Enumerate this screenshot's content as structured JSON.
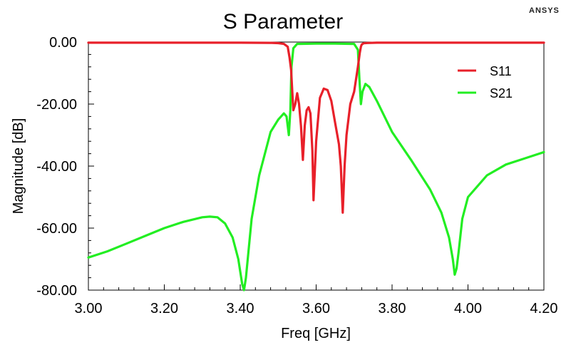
{
  "brand": "ANSYS",
  "chart_data": {
    "type": "line",
    "title": "S Parameter",
    "xlabel": "Freq [GHz]",
    "ylabel": "Magnitude [dB]",
    "xlim": [
      3.0,
      4.2
    ],
    "ylim": [
      -80,
      0
    ],
    "x_ticks": [
      "3.00",
      "3.20",
      "3.40",
      "3.60",
      "3.80",
      "4.00",
      "4.20"
    ],
    "y_ticks": [
      "0.00",
      "-20.00",
      "-40.00",
      "-60.00",
      "-80.00"
    ],
    "grid": false,
    "legend_position": "top-right",
    "series": [
      {
        "name": "S11",
        "color": "#e8202a",
        "x": [
          3.0,
          3.3,
          3.4,
          3.48,
          3.5,
          3.515,
          3.525,
          3.53,
          3.534,
          3.537,
          3.54,
          3.545,
          3.55,
          3.555,
          3.56,
          3.565,
          3.57,
          3.575,
          3.58,
          3.585,
          3.59,
          3.593,
          3.6,
          3.61,
          3.62,
          3.63,
          3.64,
          3.65,
          3.66,
          3.665,
          3.67,
          3.675,
          3.68,
          3.69,
          3.7,
          3.71,
          3.715,
          3.718,
          3.72,
          3.725,
          3.735,
          3.76,
          3.8,
          4.0,
          4.2
        ],
        "y": [
          -0.2,
          -0.2,
          -0.2,
          -0.25,
          -0.35,
          -0.6,
          -1.5,
          -5.0,
          -9.0,
          -16.0,
          -22.0,
          -20.0,
          -16.5,
          -20.0,
          -27.0,
          -38.0,
          -27.0,
          -22.0,
          -21.0,
          -23.0,
          -35.0,
          -51.0,
          -32.0,
          -18.0,
          -15.0,
          -15.5,
          -19.0,
          -26.0,
          -33.0,
          -40.0,
          -55.0,
          -40.0,
          -30.0,
          -20.0,
          -16.0,
          -8.0,
          -3.5,
          -1.5,
          -0.8,
          -0.4,
          -0.3,
          -0.2,
          -0.2,
          -0.2,
          -0.2
        ]
      },
      {
        "name": "S21",
        "color": "#22ee22",
        "x": [
          3.0,
          3.05,
          3.1,
          3.15,
          3.2,
          3.25,
          3.3,
          3.32,
          3.34,
          3.36,
          3.38,
          3.395,
          3.405,
          3.41,
          3.415,
          3.43,
          3.45,
          3.48,
          3.5,
          3.515,
          3.522,
          3.528,
          3.532,
          3.535,
          3.54,
          3.55,
          3.6,
          3.65,
          3.7,
          3.71,
          3.714,
          3.718,
          3.722,
          3.73,
          3.74,
          3.76,
          3.8,
          3.85,
          3.9,
          3.93,
          3.95,
          3.96,
          3.965,
          3.97,
          3.975,
          3.985,
          4.0,
          4.05,
          4.1,
          4.15,
          4.2
        ],
        "y": [
          -69.5,
          -67.5,
          -65.0,
          -62.5,
          -60.0,
          -58.0,
          -56.5,
          -56.3,
          -56.5,
          -58.5,
          -63.0,
          -70.0,
          -78.0,
          -80.0,
          -76.0,
          -57.0,
          -43.0,
          -29.0,
          -25.0,
          -23.0,
          -24.0,
          -30.0,
          -22.0,
          -8.0,
          -2.0,
          -0.6,
          -0.5,
          -0.5,
          -0.6,
          -2.5,
          -12.0,
          -20.0,
          -16.0,
          -13.5,
          -14.5,
          -19.0,
          -29.0,
          -38.0,
          -47.5,
          -55.0,
          -63.0,
          -70.0,
          -75.0,
          -73.0,
          -68.0,
          -57.0,
          -50.0,
          -43.0,
          -39.5,
          -37.5,
          -35.5
        ]
      }
    ]
  }
}
